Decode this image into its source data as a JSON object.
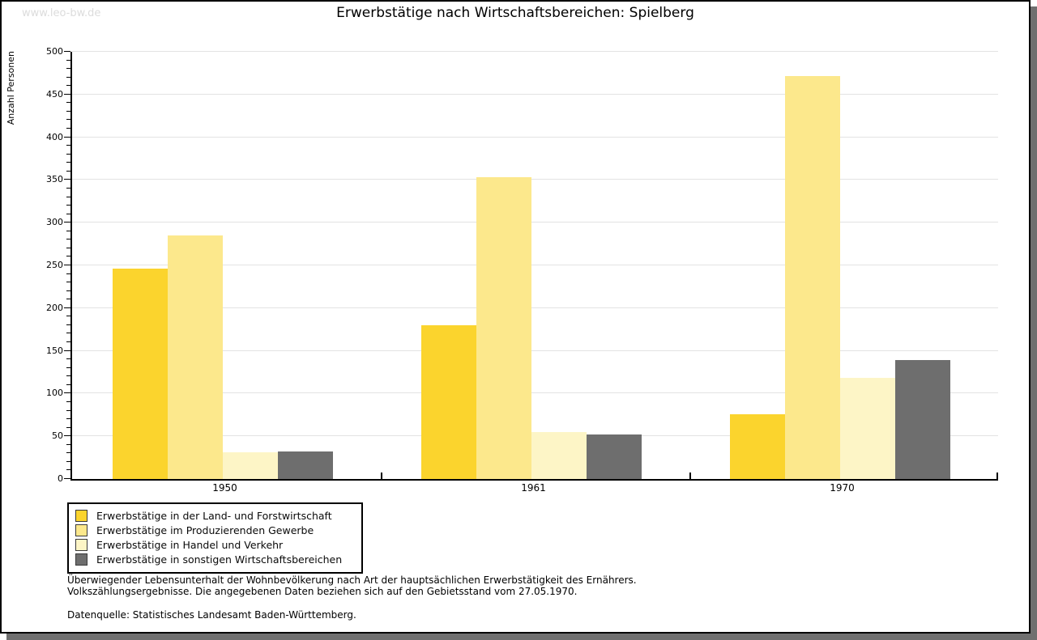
{
  "watermark": "www.leo-bw.de",
  "title": "Erwerbstätige nach Wirtschaftsbereichen: Spielberg",
  "chart_data": {
    "type": "bar",
    "title": "Erwerbstätige nach Wirtschaftsbereichen: Spielberg",
    "xlabel": "",
    "ylabel": "Anzahl Personen",
    "ylim": [
      0,
      500
    ],
    "y_major_step": 50,
    "y_minor_step": 10,
    "grid": "horizontal-major",
    "legend_position": "bottom-left",
    "categories": [
      "1950",
      "1961",
      "1970"
    ],
    "series": [
      {
        "name": "Erwerbstätige in der Land- und Forstwirtschaft",
        "color": "#fbd42d",
        "values": [
          246,
          180,
          76
        ]
      },
      {
        "name": "Erwerbstätige im Produzierenden Gewerbe",
        "color": "#fce88c",
        "values": [
          285,
          353,
          472
        ]
      },
      {
        "name": "Erwerbstätige in Handel und Verkehr",
        "color": "#fdf5c6",
        "values": [
          31,
          55,
          118
        ]
      },
      {
        "name": "Erwerbstätige in sonstigen Wirtschaftsbereichen",
        "color": "#6e6e6e",
        "values": [
          32,
          52,
          139
        ]
      }
    ]
  },
  "footer": {
    "line1": "Überwiegender Lebensunterhalt der Wohnbevölkerung nach Art der hauptsächlichen Erwerbstätigkeit des Ernährers.",
    "line2": "Volkszählungsergebnisse. Die angegebenen Daten beziehen sich auf den Gebietsstand vom 27.05.1970.",
    "source": "Datenquelle: Statistisches Landesamt Baden-Württemberg."
  },
  "colors": {
    "gridline": "#e3e3e3",
    "axis": "#000000",
    "shadow": "#6f6f6f",
    "watermark": "#dcdcdc",
    "background": "#ffffff"
  }
}
